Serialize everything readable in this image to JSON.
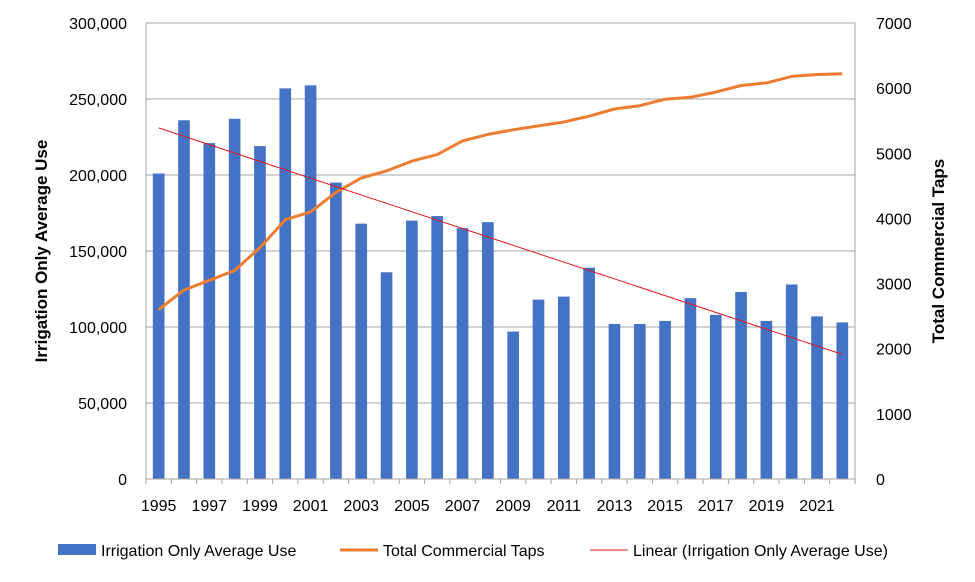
{
  "chart_data": {
    "type": "bar+line",
    "title": "",
    "categories": [
      "1995",
      "1996",
      "1997",
      "1998",
      "1999",
      "2000",
      "2001",
      "2002",
      "2003",
      "2004",
      "2005",
      "2006",
      "2007",
      "2008",
      "2009",
      "2010",
      "2011",
      "2012",
      "2013",
      "2014",
      "2015",
      "2016",
      "2017",
      "2018",
      "2019",
      "2020",
      "2021",
      "2022"
    ],
    "x_tick_labels": [
      "1995",
      "1997",
      "1999",
      "2001",
      "2003",
      "2005",
      "2007",
      "2009",
      "2011",
      "2013",
      "2015",
      "2017",
      "2019",
      "2021"
    ],
    "ylabel": "Irrigation Only Average Use",
    "y2label": "Total Commercial Taps",
    "ylim": [
      0,
      300000
    ],
    "y2lim": [
      0,
      7000
    ],
    "y_ticks": [
      0,
      50000,
      100000,
      150000,
      200000,
      250000,
      300000
    ],
    "y_tick_labels": [
      "0",
      "50,000",
      "100,000",
      "150,000",
      "200,000",
      "250,000",
      "300,000"
    ],
    "y2_ticks": [
      0,
      1000,
      2000,
      3000,
      4000,
      5000,
      6000,
      7000
    ],
    "y2_tick_labels": [
      "0",
      "1000",
      "2000",
      "3000",
      "4000",
      "5000",
      "6000",
      "7000"
    ],
    "grid": true,
    "legend_position": "bottom",
    "series": [
      {
        "name": "Irrigation Only Average Use",
        "type": "bar",
        "axis": "left",
        "color": "#4472C4",
        "values": [
          201000,
          236000,
          221000,
          237000,
          219000,
          257000,
          259000,
          195000,
          168000,
          136000,
          170000,
          173000,
          165000,
          169000,
          97000,
          118000,
          120000,
          139000,
          102000,
          102000,
          104000,
          119000,
          108000,
          123000,
          104000,
          128000,
          107000,
          103000
        ]
      },
      {
        "name": "Total Commercial Taps",
        "type": "line",
        "axis": "right",
        "color": "#ED7D31",
        "values": [
          2600,
          2900,
          3050,
          3200,
          3550,
          3980,
          4100,
          4400,
          4620,
          4730,
          4880,
          4980,
          5190,
          5290,
          5360,
          5420,
          5480,
          5570,
          5680,
          5730,
          5830,
          5860,
          5940,
          6040,
          6080,
          6180,
          6210,
          6220
        ]
      },
      {
        "name": "Linear (Irrigation Only Average Use)",
        "type": "trendline",
        "axis": "left",
        "color": "#E0191E",
        "start": 231000,
        "end": 82000
      }
    ]
  }
}
